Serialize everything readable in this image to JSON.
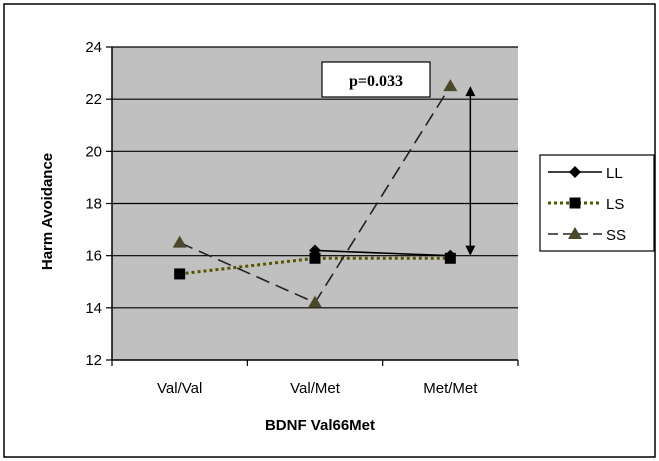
{
  "chart_data": {
    "type": "line",
    "title": "",
    "xlabel": "BDNF Val66Met",
    "ylabel": "Harm Avoidance",
    "categories": [
      "Val/Val",
      "Val/Met",
      "Met/Met"
    ],
    "ylim": [
      12,
      24
    ],
    "yticks": [
      12,
      14,
      16,
      18,
      20,
      22,
      24
    ],
    "grid": true,
    "legend_position": "right",
    "series": [
      {
        "name": "LL",
        "values": [
          null,
          16.2,
          16.0
        ],
        "color": "#000000",
        "line": "solid",
        "marker": "diamond"
      },
      {
        "name": "LS",
        "values": [
          15.3,
          15.9,
          15.9
        ],
        "color": "#000000",
        "line": "dotted",
        "marker": "square"
      },
      {
        "name": "SS",
        "values": [
          16.5,
          14.2,
          22.5
        ],
        "color": "#000000",
        "line": "dashed",
        "marker": "triangle"
      }
    ],
    "annotations": [
      {
        "text": "p=0.033",
        "category": "Met/Met",
        "from": 16.0,
        "to": 22.5
      }
    ],
    "colors": {
      "plot_background": "#c0c0c0",
      "ls_line": "#555500",
      "ss_marker": "#4a4a2a"
    }
  }
}
